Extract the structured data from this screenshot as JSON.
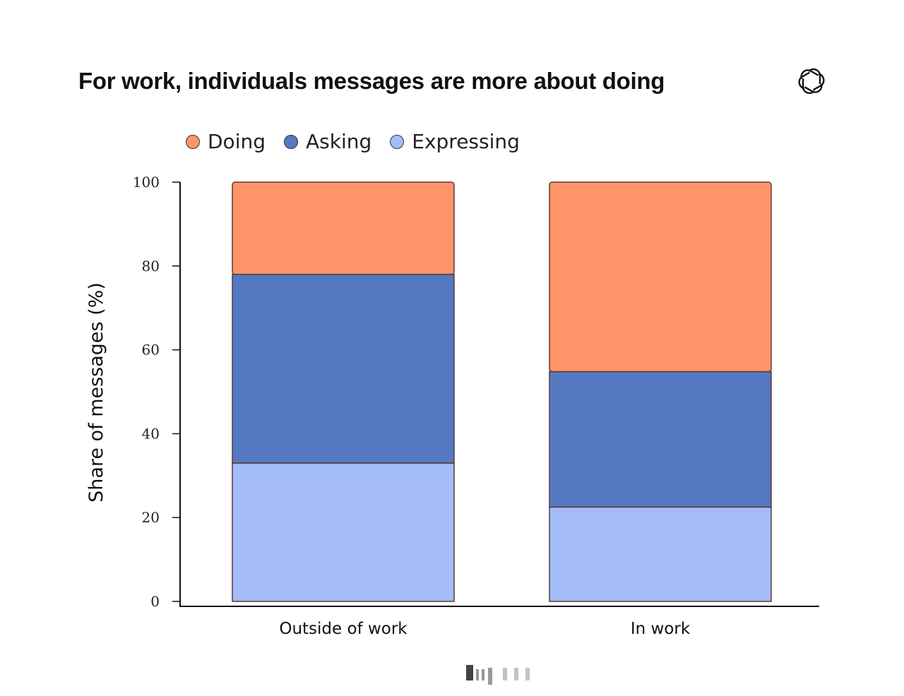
{
  "title": "For work, individuals messages are more about doing",
  "logo_icon": "openai-logo-icon",
  "chart_data": {
    "type": "bar",
    "stacked": true,
    "categories": [
      "Outside of work",
      "In work"
    ],
    "series": [
      {
        "name": "Expressing",
        "color": "#a4bcf8",
        "values": [
          33,
          22.5
        ]
      },
      {
        "name": "Asking",
        "color": "#5479c2",
        "values": [
          45,
          32.3
        ]
      },
      {
        "name": "Doing",
        "color": "#fe9468",
        "values": [
          22,
          45.2
        ]
      }
    ],
    "legend_order": [
      "Doing",
      "Asking",
      "Expressing"
    ],
    "ylabel": "Share of messages (%)",
    "xlabel": "",
    "ylim": [
      0,
      100
    ],
    "yticks": [
      "0",
      "20",
      "40",
      "60",
      "80",
      "100"
    ],
    "grid": false,
    "legend_position": "top-left"
  }
}
